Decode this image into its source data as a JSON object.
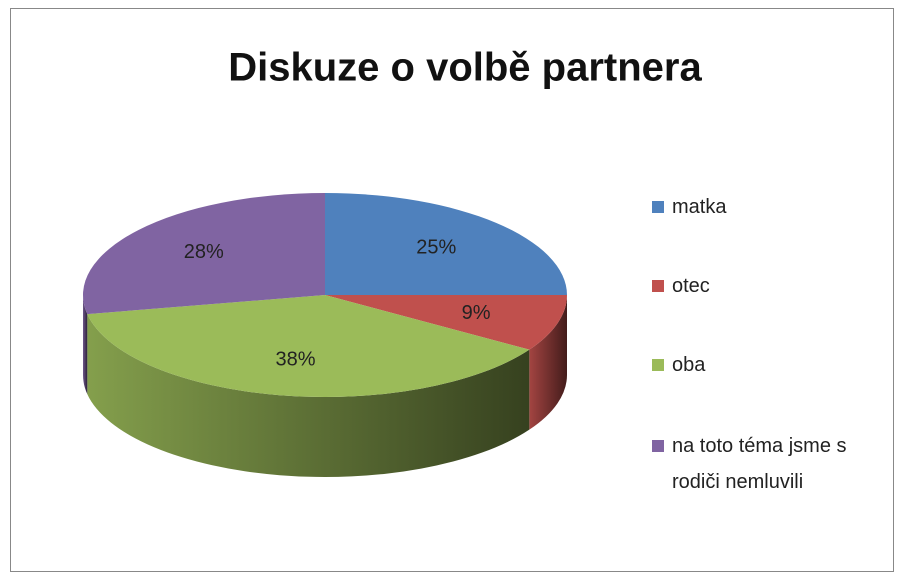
{
  "chart_data": {
    "type": "pie",
    "title": "Diskuze o volbě partnera",
    "categories": [
      "matka",
      "otec",
      "oba",
      "na toto téma jsme s rodiči nemluvili"
    ],
    "values": [
      25,
      9,
      38,
      28
    ],
    "value_labels": [
      "25%",
      "9%",
      "38%",
      "28%"
    ],
    "colors": [
      "#4f81bd",
      "#c0504d",
      "#9bbb59",
      "#8064a2"
    ],
    "legend": "right"
  }
}
